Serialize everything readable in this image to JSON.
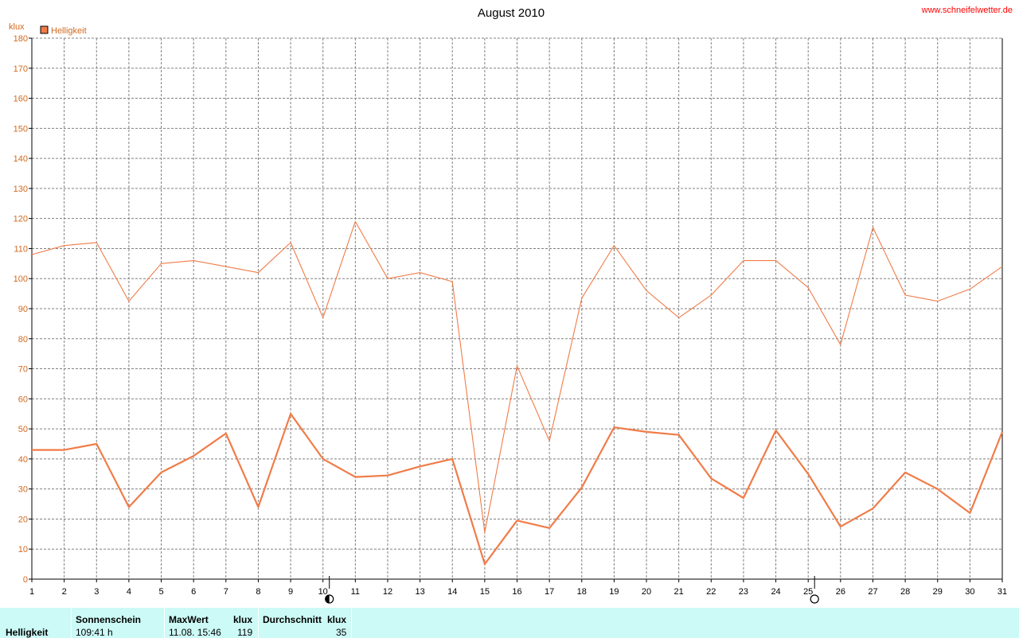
{
  "header": {
    "title": "August 2010",
    "website": "www.schneifelwetter.de"
  },
  "colors": {
    "series": "#f07c48",
    "axis_text": "#d2691e",
    "grid": "#808080",
    "summary_bg": "#ccfaf6"
  },
  "chart_data": {
    "type": "line",
    "title": "August 2010",
    "ylabel": "klux",
    "ylim": [
      0,
      180
    ],
    "yticks": [
      0,
      10,
      20,
      30,
      40,
      50,
      60,
      70,
      80,
      90,
      100,
      110,
      120,
      130,
      140,
      150,
      160,
      170,
      180
    ],
    "xlim": [
      1,
      31
    ],
    "x": [
      1,
      2,
      3,
      4,
      5,
      6,
      7,
      8,
      9,
      10,
      11,
      12,
      13,
      14,
      15,
      16,
      17,
      18,
      19,
      20,
      21,
      22,
      23,
      24,
      25,
      26,
      27,
      28,
      29,
      30,
      31
    ],
    "grid": true,
    "legend": {
      "position": "top-left",
      "entries": [
        "Helligkeit"
      ]
    },
    "series": [
      {
        "name": "Helligkeit",
        "role": "max",
        "values": [
          108,
          111,
          112,
          92.5,
          105,
          106,
          104,
          102,
          112,
          87,
          119,
          100,
          102,
          99,
          15.5,
          71,
          46,
          93.5,
          111,
          96,
          87,
          94.5,
          106,
          106,
          97,
          78,
          117,
          94.5,
          92.5,
          96.5,
          104
        ]
      },
      {
        "name": "Helligkeit",
        "role": "mean",
        "values": [
          43,
          43,
          45,
          24,
          35.5,
          41,
          48.5,
          24,
          55,
          40,
          34,
          34.5,
          37.5,
          40,
          5,
          19.5,
          17,
          30.5,
          50.5,
          49,
          48,
          33.5,
          27,
          49.5,
          35,
          17.5,
          23.5,
          35.5,
          30,
          22,
          49
        ]
      }
    ],
    "annotations": [
      {
        "type": "half-moon",
        "x": 10
      },
      {
        "type": "full-moon",
        "x": 25
      }
    ]
  },
  "summary": {
    "row_label": "Helligkeit",
    "sunshine_header": "Sonnenschein",
    "sunshine_value": "109:41 h",
    "max_header": "MaxWert",
    "max_unit": "klux",
    "max_datetime": "11.08.  15:46",
    "max_value": "119",
    "avg_header": "Durchschnitt",
    "avg_unit": "klux",
    "avg_value": "35"
  }
}
